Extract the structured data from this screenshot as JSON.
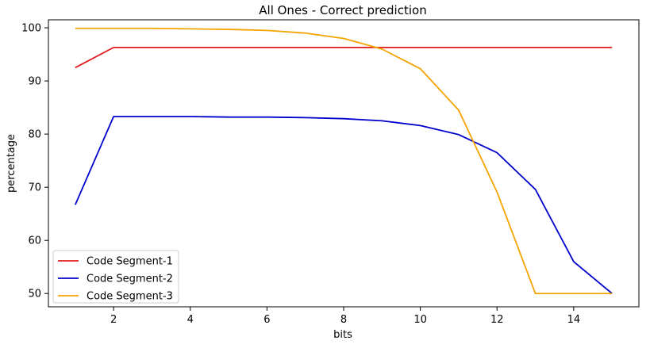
{
  "chart_data": {
    "type": "line",
    "title": "All Ones - Correct prediction",
    "xlabel": "bits",
    "ylabel": "percentage",
    "xlim": [
      0.3,
      15.7
    ],
    "ylim": [
      47.5,
      101.5
    ],
    "xticks": [
      2,
      4,
      6,
      8,
      10,
      12,
      14
    ],
    "yticks": [
      50,
      60,
      70,
      80,
      90,
      100
    ],
    "grid": false,
    "legend_position": "lower-left",
    "x": [
      1,
      2,
      3,
      4,
      5,
      6,
      7,
      8,
      9,
      10,
      11,
      12,
      13,
      14,
      15
    ],
    "series": [
      {
        "name": "Code Segment-1",
        "color": "#e31a1c",
        "values": [
          92.5,
          96.3,
          96.3,
          96.3,
          96.3,
          96.3,
          96.3,
          96.3,
          96.3,
          96.3,
          96.3,
          96.3,
          96.3,
          96.3,
          96.3
        ]
      },
      {
        "name": "Code Segment-2",
        "color": "#0000cc",
        "values": [
          66.7,
          83.3,
          83.3,
          83.3,
          83.2,
          83.2,
          83.1,
          82.9,
          82.5,
          81.6,
          79.9,
          76.5,
          69.6,
          56.0,
          50.0
        ]
      },
      {
        "name": "Code Segment-3",
        "color": "#f5a300",
        "values": [
          99.9,
          99.9,
          99.9,
          99.8,
          99.7,
          99.5,
          99.0,
          98.0,
          96.0,
          92.3,
          84.5,
          69.1,
          50.0,
          50.0,
          50.0
        ]
      }
    ]
  }
}
